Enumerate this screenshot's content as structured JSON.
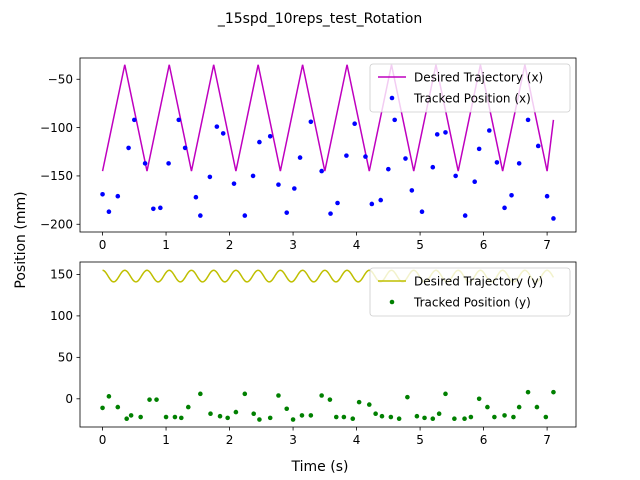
{
  "figure": {
    "title": "_15spd_10reps_test_Rotation",
    "xlabel": "Time (s)",
    "ylabel": "Position (mm)"
  },
  "chart_data": [
    {
      "type": "line",
      "title": "",
      "xlabel": "",
      "ylabel": "",
      "xlim": [
        -0.355,
        7.455
      ],
      "ylim": [
        -208,
        -28
      ],
      "x_ticks": [
        0,
        1,
        2,
        3,
        4,
        5,
        6,
        7
      ],
      "x_tick_labels": [
        "0",
        "1",
        "2",
        "3",
        "4",
        "5",
        "6",
        "7"
      ],
      "y_ticks": [
        -50,
        -100,
        -150,
        -200
      ],
      "y_tick_labels": [
        "−50",
        "−100",
        "−150",
        "−200"
      ],
      "grid": false,
      "legend_position": "upper right",
      "series": [
        {
          "name": "Desired Trajectory (x)",
          "kind": "line",
          "color": "#bf00bf",
          "x": [
            0.0,
            0.35,
            0.7,
            1.05,
            1.4,
            1.75,
            2.1,
            2.45,
            2.8,
            3.15,
            3.5,
            3.85,
            4.2,
            4.55,
            4.9,
            5.25,
            5.6,
            5.95,
            6.3,
            6.65,
            7.0,
            7.1
          ],
          "y": [
            -145,
            -35,
            -145,
            -35,
            -145,
            -35,
            -145,
            -35,
            -145,
            -35,
            -145,
            -35,
            -145,
            -35,
            -145,
            -35,
            -145,
            -35,
            -145,
            -35,
            -145,
            -92
          ]
        },
        {
          "name": "Tracked Position (x)",
          "kind": "scatter",
          "color": "#0000ff",
          "x": [
            0.0,
            0.1,
            0.24,
            0.41,
            0.5,
            0.67,
            0.8,
            0.91,
            1.04,
            1.2,
            1.3,
            1.47,
            1.54,
            1.69,
            1.8,
            1.9,
            2.07,
            2.24,
            2.37,
            2.47,
            2.64,
            2.77,
            2.9,
            3.02,
            3.11,
            3.28,
            3.45,
            3.59,
            3.7,
            3.84,
            3.97,
            4.14,
            4.24,
            4.38,
            4.5,
            4.6,
            4.77,
            4.87,
            5.03,
            5.2,
            5.27,
            5.4,
            5.56,
            5.71,
            5.86,
            5.93,
            6.09,
            6.21,
            6.33,
            6.44,
            6.56,
            6.7,
            6.86,
            7.0,
            7.1
          ],
          "y": [
            -169,
            -187,
            -171,
            -121,
            -92,
            -137,
            -184,
            -183,
            -137,
            -92,
            -121,
            -172,
            -191,
            -151,
            -99,
            -106,
            -158,
            -191,
            -150,
            -115,
            -109,
            -159,
            -188,
            -163,
            -131,
            -94,
            -145,
            -189,
            -178,
            -129,
            -96,
            -130,
            -179,
            -175,
            -143,
            -92,
            -132,
            -165,
            -187,
            -141,
            -107,
            -105,
            -150,
            -191,
            -156,
            -122,
            -103,
            -136,
            -183,
            -170,
            -137,
            -92,
            -119,
            -171,
            -194
          ]
        }
      ]
    },
    {
      "type": "line",
      "title": "",
      "xlabel": "Time (s)",
      "ylabel": "",
      "xlim": [
        -0.355,
        7.455
      ],
      "ylim": [
        -34,
        165
      ],
      "x_ticks": [
        0,
        1,
        2,
        3,
        4,
        5,
        6,
        7
      ],
      "x_tick_labels": [
        "0",
        "1",
        "2",
        "3",
        "4",
        "5",
        "6",
        "7"
      ],
      "y_ticks": [
        150,
        100,
        50,
        0
      ],
      "y_tick_labels": [
        "150",
        "100",
        "50",
        "0"
      ],
      "grid": false,
      "legend_position": "upper right",
      "series": [
        {
          "name": "Desired Trajectory (y)",
          "kind": "line",
          "color": "#bfbf00",
          "function": "oscillation",
          "x_range": [
            0,
            7.1
          ],
          "center": 148,
          "amplitude": 7,
          "period": 0.35
        },
        {
          "name": "Tracked Position (y)",
          "kind": "scatter",
          "color": "#008000",
          "x": [
            0.0,
            0.1,
            0.24,
            0.38,
            0.45,
            0.6,
            0.74,
            0.85,
            1.0,
            1.14,
            1.24,
            1.35,
            1.54,
            1.7,
            1.85,
            1.97,
            2.1,
            2.24,
            2.38,
            2.47,
            2.64,
            2.77,
            2.9,
            3.0,
            3.14,
            3.28,
            3.45,
            3.58,
            3.68,
            3.8,
            3.94,
            4.04,
            4.2,
            4.3,
            4.4,
            4.54,
            4.67,
            4.8,
            4.95,
            5.07,
            5.2,
            5.3,
            5.4,
            5.54,
            5.7,
            5.8,
            5.93,
            6.06,
            6.17,
            6.33,
            6.47,
            6.56,
            6.7,
            6.84,
            6.98,
            7.1
          ],
          "y": [
            -11,
            3,
            -10,
            -24,
            -20,
            -22,
            -1,
            -1,
            -22,
            -22,
            -23,
            -10,
            6,
            -18,
            -21,
            -23,
            -16,
            6,
            -18,
            -25,
            -23,
            4,
            -12,
            -25,
            -20,
            -20,
            4,
            -1,
            -22,
            -22,
            -24,
            -4,
            -7,
            -18,
            -21,
            -22,
            -24,
            2,
            -21,
            -23,
            -24,
            -18,
            6,
            -24,
            -24,
            -22,
            0,
            -10,
            -22,
            -20,
            -22,
            -10,
            8,
            -10,
            -22,
            8
          ]
        }
      ]
    }
  ]
}
